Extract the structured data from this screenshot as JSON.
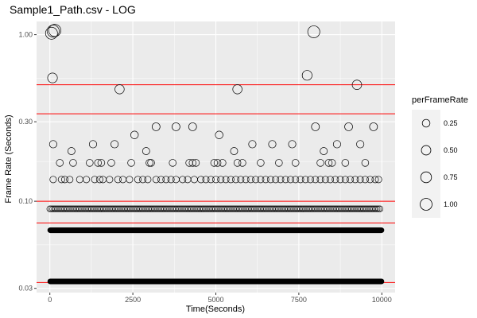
{
  "chart_data": {
    "type": "scatter",
    "title": "Sample1_Path.csv - LOG",
    "xlabel": "Time(Seconds)",
    "ylabel": "Frame Rate (Seconds)",
    "xlim": [
      -400,
      10400
    ],
    "ylim": [
      0.0283,
      1.2
    ],
    "y_scale": "log",
    "x_ticks": [
      0,
      2500,
      5000,
      7500,
      10000
    ],
    "x_tick_labels": [
      "0",
      "2500",
      "5000",
      "7500",
      "10000"
    ],
    "y_ticks": [
      0.03,
      0.1,
      0.3,
      1.0
    ],
    "y_tick_labels": [
      "0.03",
      "0.10",
      "0.30",
      "1.00"
    ],
    "grid": true,
    "reference_lines": [
      0.0325,
      0.074,
      0.1,
      0.335,
      0.5
    ],
    "reference_line_color": "#ff0000",
    "point_stroke": "#000000",
    "panel_background": "#ebebeb",
    "legend": {
      "title": "perFrameRate",
      "placement": "right",
      "entries": [
        {
          "label": "0.25",
          "size": 0.25
        },
        {
          "label": "0.50",
          "size": 0.5
        },
        {
          "label": "0.75",
          "size": 0.75
        },
        {
          "label": "1.00",
          "size": 1.0
        }
      ]
    },
    "bands": [
      {
        "y": 0.033,
        "x_start": 0,
        "x_end": 10000
      },
      {
        "y": 0.067,
        "x_start": 0,
        "x_end": 10000
      }
    ],
    "points": [
      {
        "x": 50,
        "y": 1.02
      },
      {
        "x": 100,
        "y": 1.05
      },
      {
        "x": 150,
        "y": 1.06
      },
      {
        "x": 80,
        "y": 0.55
      },
      {
        "x": 100,
        "y": 0.22
      },
      {
        "x": 2100,
        "y": 0.47
      },
      {
        "x": 5650,
        "y": 0.47
      },
      {
        "x": 7750,
        "y": 0.57
      },
      {
        "x": 7950,
        "y": 1.04
      },
      {
        "x": 9250,
        "y": 0.5
      },
      {
        "x": 3200,
        "y": 0.28
      },
      {
        "x": 3800,
        "y": 0.28
      },
      {
        "x": 4300,
        "y": 0.28
      },
      {
        "x": 8000,
        "y": 0.28
      },
      {
        "x": 9000,
        "y": 0.28
      },
      {
        "x": 9750,
        "y": 0.28
      },
      {
        "x": 2550,
        "y": 0.25
      },
      {
        "x": 5100,
        "y": 0.25
      },
      {
        "x": 650,
        "y": 0.2
      },
      {
        "x": 1300,
        "y": 0.22
      },
      {
        "x": 1950,
        "y": 0.22
      },
      {
        "x": 2900,
        "y": 0.2
      },
      {
        "x": 5550,
        "y": 0.2
      },
      {
        "x": 6100,
        "y": 0.22
      },
      {
        "x": 6700,
        "y": 0.22
      },
      {
        "x": 7300,
        "y": 0.22
      },
      {
        "x": 8250,
        "y": 0.2
      },
      {
        "x": 8650,
        "y": 0.22
      },
      {
        "x": 9350,
        "y": 0.22
      },
      {
        "x": 300,
        "y": 0.17
      },
      {
        "x": 700,
        "y": 0.17
      },
      {
        "x": 1200,
        "y": 0.17
      },
      {
        "x": 1450,
        "y": 0.17
      },
      {
        "x": 1550,
        "y": 0.17
      },
      {
        "x": 1850,
        "y": 0.17
      },
      {
        "x": 2450,
        "y": 0.17
      },
      {
        "x": 3000,
        "y": 0.17
      },
      {
        "x": 3050,
        "y": 0.17
      },
      {
        "x": 3700,
        "y": 0.17
      },
      {
        "x": 4200,
        "y": 0.17
      },
      {
        "x": 4300,
        "y": 0.17
      },
      {
        "x": 4400,
        "y": 0.17
      },
      {
        "x": 4950,
        "y": 0.17
      },
      {
        "x": 5050,
        "y": 0.17
      },
      {
        "x": 5200,
        "y": 0.17
      },
      {
        "x": 5650,
        "y": 0.17
      },
      {
        "x": 5800,
        "y": 0.17
      },
      {
        "x": 6350,
        "y": 0.17
      },
      {
        "x": 6900,
        "y": 0.17
      },
      {
        "x": 7400,
        "y": 0.17
      },
      {
        "x": 8150,
        "y": 0.17
      },
      {
        "x": 8400,
        "y": 0.17
      },
      {
        "x": 8500,
        "y": 0.17
      },
      {
        "x": 8900,
        "y": 0.17
      },
      {
        "x": 9500,
        "y": 0.17
      },
      {
        "x": 100,
        "y": 0.135
      },
      {
        "x": 350,
        "y": 0.135
      },
      {
        "x": 450,
        "y": 0.135
      },
      {
        "x": 600,
        "y": 0.135
      },
      {
        "x": 900,
        "y": 0.135
      },
      {
        "x": 1100,
        "y": 0.135
      },
      {
        "x": 1350,
        "y": 0.135
      },
      {
        "x": 1500,
        "y": 0.135
      },
      {
        "x": 1600,
        "y": 0.135
      },
      {
        "x": 1800,
        "y": 0.135
      },
      {
        "x": 2050,
        "y": 0.135
      },
      {
        "x": 2200,
        "y": 0.135
      },
      {
        "x": 2400,
        "y": 0.135
      },
      {
        "x": 2650,
        "y": 0.135
      },
      {
        "x": 2800,
        "y": 0.135
      },
      {
        "x": 2950,
        "y": 0.135
      },
      {
        "x": 3200,
        "y": 0.135
      },
      {
        "x": 3350,
        "y": 0.135
      },
      {
        "x": 3500,
        "y": 0.135
      },
      {
        "x": 3650,
        "y": 0.135
      },
      {
        "x": 3800,
        "y": 0.135
      },
      {
        "x": 4000,
        "y": 0.135
      },
      {
        "x": 4150,
        "y": 0.135
      },
      {
        "x": 4350,
        "y": 0.135
      },
      {
        "x": 4550,
        "y": 0.135
      },
      {
        "x": 4700,
        "y": 0.135
      },
      {
        "x": 4850,
        "y": 0.135
      },
      {
        "x": 5000,
        "y": 0.135
      },
      {
        "x": 5150,
        "y": 0.135
      },
      {
        "x": 5300,
        "y": 0.135
      },
      {
        "x": 5450,
        "y": 0.135
      },
      {
        "x": 5600,
        "y": 0.135
      },
      {
        "x": 5750,
        "y": 0.135
      },
      {
        "x": 5900,
        "y": 0.135
      },
      {
        "x": 6050,
        "y": 0.135
      },
      {
        "x": 6200,
        "y": 0.135
      },
      {
        "x": 6350,
        "y": 0.135
      },
      {
        "x": 6500,
        "y": 0.135
      },
      {
        "x": 6650,
        "y": 0.135
      },
      {
        "x": 6800,
        "y": 0.135
      },
      {
        "x": 6950,
        "y": 0.135
      },
      {
        "x": 7100,
        "y": 0.135
      },
      {
        "x": 7250,
        "y": 0.135
      },
      {
        "x": 7400,
        "y": 0.135
      },
      {
        "x": 7550,
        "y": 0.135
      },
      {
        "x": 7700,
        "y": 0.135
      },
      {
        "x": 7850,
        "y": 0.135
      },
      {
        "x": 8000,
        "y": 0.135
      },
      {
        "x": 8150,
        "y": 0.135
      },
      {
        "x": 8300,
        "y": 0.135
      },
      {
        "x": 8450,
        "y": 0.135
      },
      {
        "x": 8600,
        "y": 0.135
      },
      {
        "x": 8750,
        "y": 0.135
      },
      {
        "x": 8900,
        "y": 0.135
      },
      {
        "x": 9050,
        "y": 0.135
      },
      {
        "x": 9200,
        "y": 0.135
      },
      {
        "x": 9350,
        "y": 0.135
      },
      {
        "x": 9500,
        "y": 0.135
      },
      {
        "x": 9650,
        "y": 0.135
      },
      {
        "x": 9800,
        "y": 0.135
      },
      {
        "x": 9900,
        "y": 0.135
      }
    ],
    "dense_row_y": 0.09,
    "dense_row_x_start": 0,
    "dense_row_x_end": 9950
  }
}
